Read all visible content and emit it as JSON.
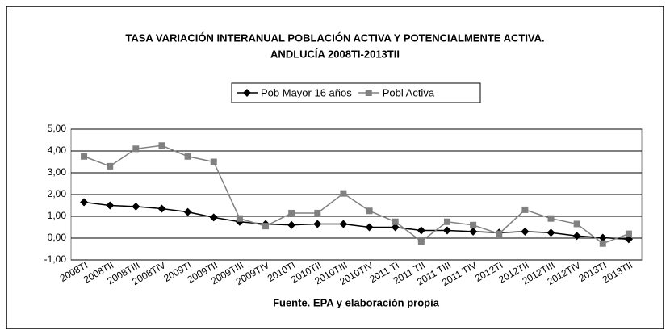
{
  "chart_data": {
    "type": "line",
    "title": "TASA VARIACIÓN INTERANUAL POBLACIÓN ACTIVA Y POTENCIALMENTE ACTIVA.",
    "subtitle": "ANDLUCÍA 2008TI-2013TII",
    "x_label": "Fuente. EPA y elaboración propia",
    "categories": [
      "2008TI",
      "2008TII",
      "2008TIII",
      "2008TIV",
      "2009TI",
      "2009TII",
      "2009TIII",
      "2009TIV",
      "2010TI",
      "2010TII",
      "2010TIII",
      "2010TIV",
      "2011 TI",
      "2011 TII",
      "2011 TIII",
      "2011 TIV",
      "2012TI",
      "2012TII",
      "2012TIII",
      "2012TIV",
      "2013TI",
      "2013TII"
    ],
    "series": [
      {
        "name": "Pob Mayor 16 años",
        "color": "#000000",
        "marker": "diamond",
        "values": [
          1.65,
          1.5,
          1.45,
          1.35,
          1.2,
          0.95,
          0.75,
          0.65,
          0.6,
          0.65,
          0.65,
          0.5,
          0.5,
          0.35,
          0.35,
          0.3,
          0.25,
          0.3,
          0.25,
          0.1,
          0.02,
          -0.05
        ]
      },
      {
        "name": "Pobl Activa",
        "color": "#808080",
        "marker": "square",
        "values": [
          3.75,
          3.3,
          4.1,
          4.25,
          3.75,
          3.5,
          0.9,
          0.55,
          1.15,
          1.15,
          2.05,
          1.25,
          0.75,
          -0.15,
          0.75,
          0.6,
          0.2,
          1.3,
          0.9,
          0.65,
          -0.25,
          0.2
        ]
      }
    ],
    "ylim": [
      -1,
      5
    ],
    "yticks": [
      {
        "value": -1,
        "label": "-1,00"
      },
      {
        "value": 0,
        "label": "0,00"
      },
      {
        "value": 1,
        "label": "1,00"
      },
      {
        "value": 2,
        "label": "2,00"
      },
      {
        "value": 3,
        "label": "3,00"
      },
      {
        "value": 4,
        "label": "4,00"
      },
      {
        "value": 5,
        "label": "5,00"
      }
    ],
    "grid": true,
    "legend": "top"
  }
}
